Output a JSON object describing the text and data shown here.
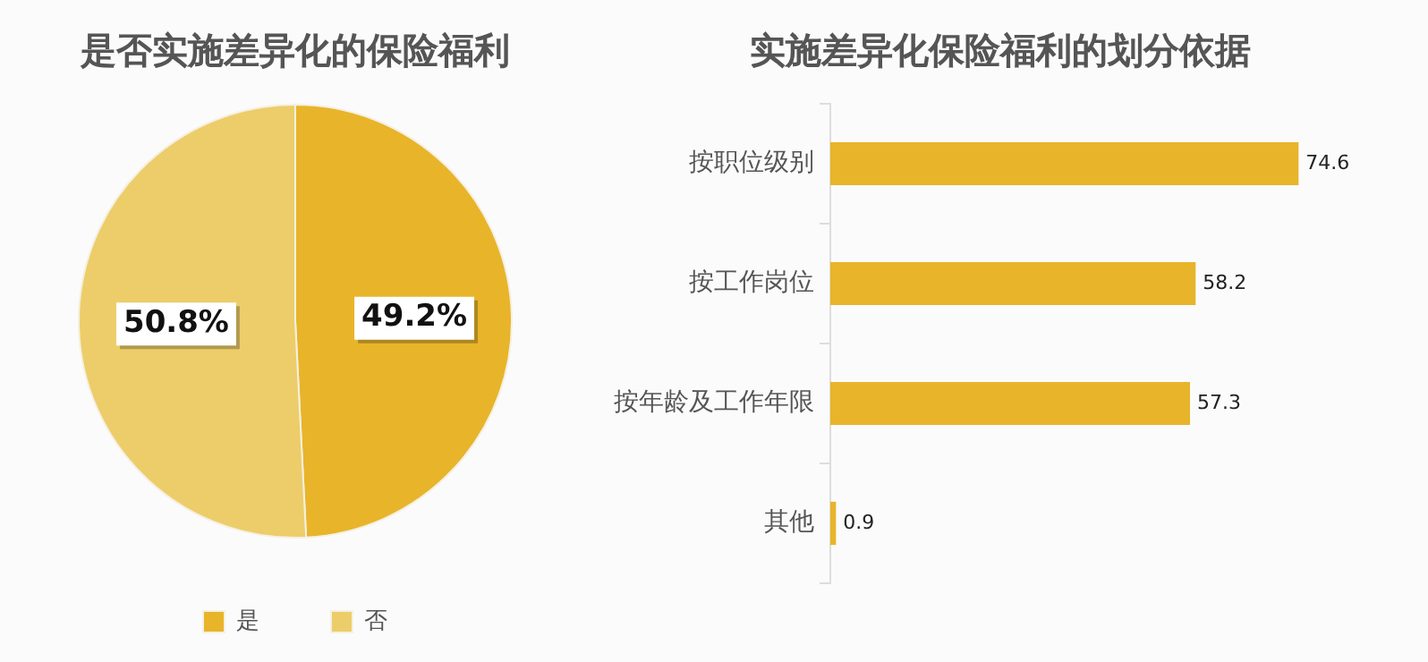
{
  "chart_data": [
    {
      "type": "pie",
      "title": "是否实施差异化的保险福利",
      "categories": [
        "是",
        "否"
      ],
      "values": [
        49.2,
        50.8
      ],
      "colors": [
        "#e8b42a",
        "#edcd6a"
      ],
      "value_labels": [
        "49.2%",
        "50.8%"
      ],
      "legend": "bottom"
    },
    {
      "type": "bar",
      "title": "实施差异化保险福利的划分依据",
      "orientation": "horizontal",
      "categories": [
        "按职位级别",
        "按工作岗位",
        "按年龄及工作年限",
        "其他"
      ],
      "values": [
        74.6,
        58.2,
        57.3,
        0.9
      ],
      "color": "#e8b42a",
      "data_labels": true
    }
  ]
}
